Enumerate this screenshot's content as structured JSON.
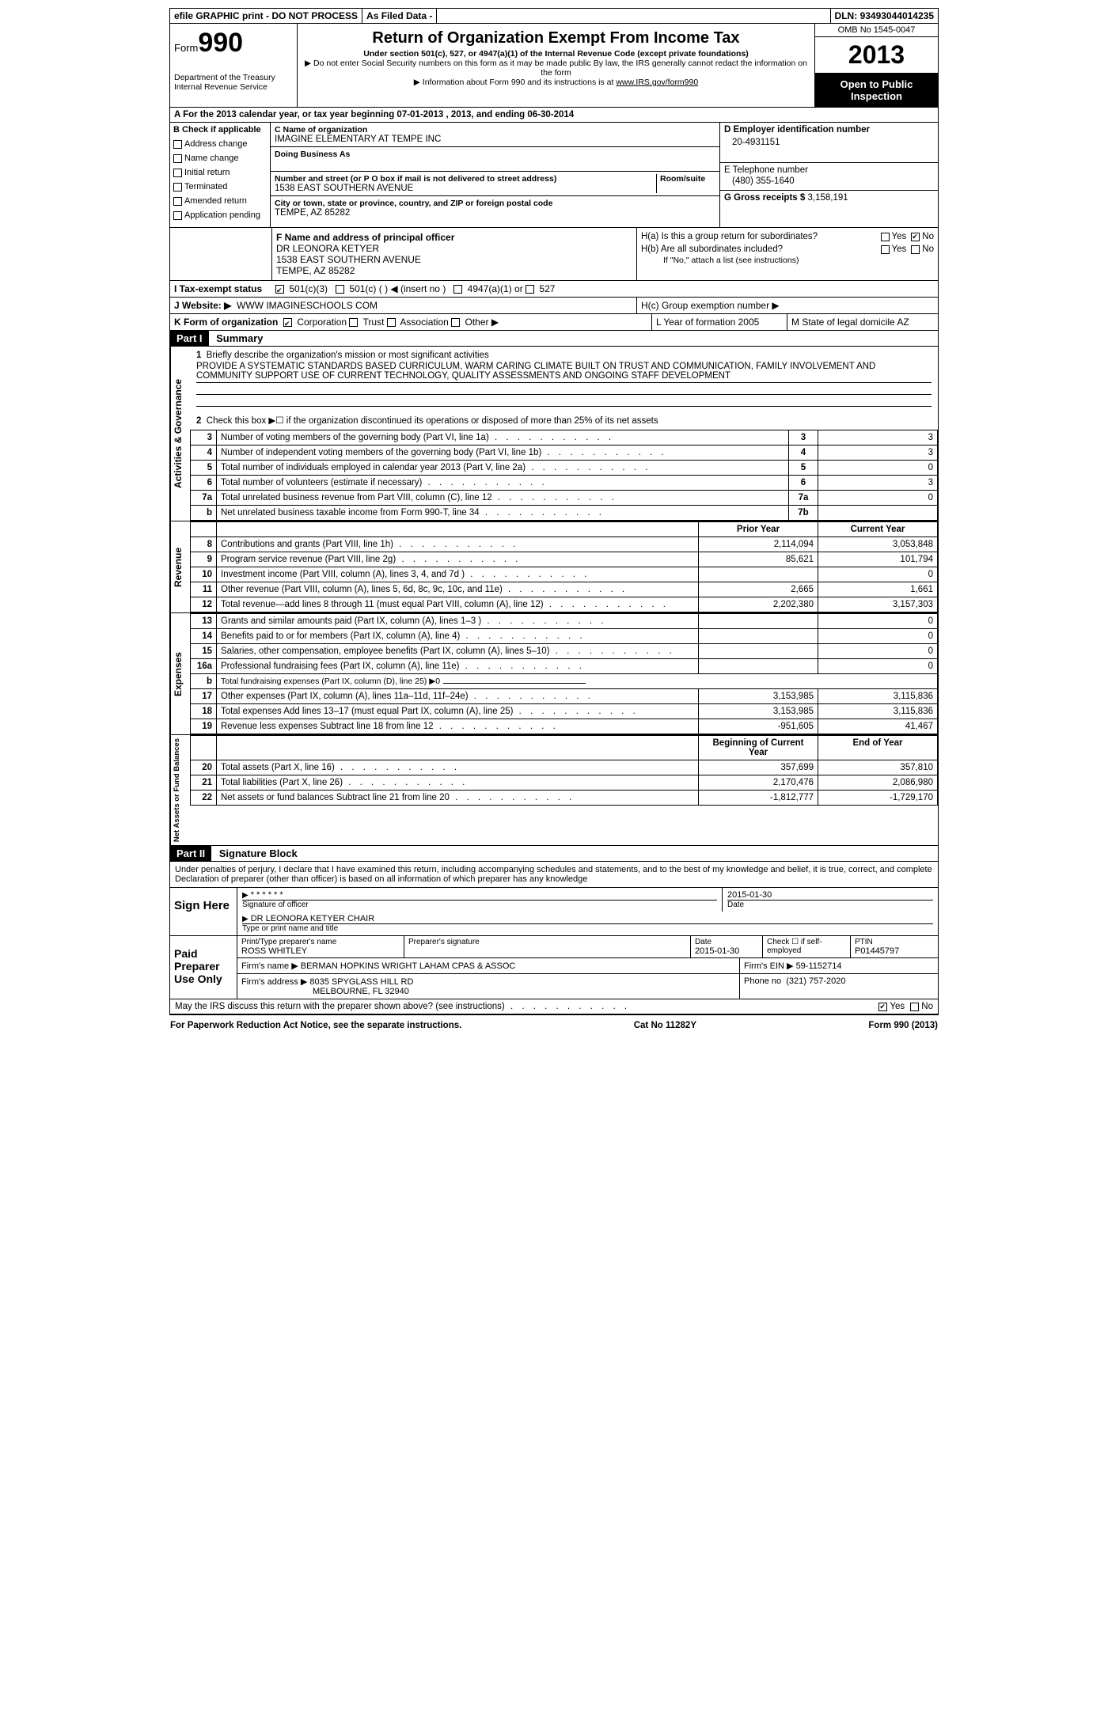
{
  "topbar": {
    "efile": "efile GRAPHIC print - DO NOT PROCESS",
    "asfiled": "As Filed Data -",
    "dln_label": "DLN:",
    "dln": "93493044014235"
  },
  "header": {
    "form_word": "Form",
    "form_num": "990",
    "dept1": "Department of the Treasury",
    "dept2": "Internal Revenue Service",
    "title": "Return of Organization Exempt From Income Tax",
    "sub1": "Under section 501(c), 527, or 4947(a)(1) of the Internal Revenue Code (except private foundations)",
    "sub2": "▶ Do not enter Social Security numbers on this form as it may be made public  By law, the IRS generally cannot redact the information on the form",
    "sub3": "▶ Information about Form 990 and its instructions is at",
    "sub3_link": "www.IRS.gov/form990",
    "omb": "OMB No  1545-0047",
    "year": "2013",
    "open1": "Open to Public",
    "open2": "Inspection"
  },
  "sectionA": "A  For the 2013 calendar year, or tax year beginning 07-01-2013     , 2013, and ending 06-30-2014",
  "colB": {
    "title": "B  Check if applicable",
    "items": [
      "Address change",
      "Name change",
      "Initial return",
      "Terminated",
      "Amended return",
      "Application pending"
    ]
  },
  "colC": {
    "c_label": "C Name of organization",
    "name": "IMAGINE ELEMENTARY AT TEMPE INC",
    "dba_label": "Doing Business As",
    "addr_label": "Number and street (or P O  box if mail is not delivered to street address)",
    "room_label": "Room/suite",
    "addr": "1538 EAST SOUTHERN AVENUE",
    "city_label": "City or town, state or province, country, and ZIP or foreign postal code",
    "city": "TEMPE, AZ  85282"
  },
  "colD": {
    "d_label": "D Employer identification number",
    "ein": "20-4931151",
    "e_label": "E Telephone number",
    "phone": "(480) 355-1640",
    "g_label": "G Gross receipts $",
    "gross": "3,158,191"
  },
  "officer": {
    "f_label": "F  Name and address of principal officer",
    "name": "DR LEONORA KETYER",
    "addr1": "1538 EAST SOUTHERN AVENUE",
    "addr2": "TEMPE, AZ  85282"
  },
  "groupH": {
    "ha": "H(a)  Is this a group return for subordinates?",
    "hb": "H(b)  Are all subordinates included?",
    "hb_note": "If \"No,\" attach a list  (see instructions)",
    "hc": "H(c)   Group exemption number ▶",
    "yes": "Yes",
    "no": "No"
  },
  "rowI": {
    "label": "I   Tax-exempt status",
    "opts": [
      "501(c)(3)",
      "501(c) (   ) ◀ (insert no )",
      "4947(a)(1) or",
      "527"
    ]
  },
  "rowJ": {
    "label": "J   Website: ▶",
    "value": "WWW IMAGINESCHOOLS COM"
  },
  "rowK": {
    "label": "K Form of organization",
    "opts": [
      "Corporation",
      "Trust",
      "Association",
      "Other ▶"
    ],
    "L": "L Year of formation  2005",
    "M": "M State of legal domicile  AZ"
  },
  "partI": {
    "header": "Part I",
    "title": "Summary",
    "q1": "Briefly describe the organization's mission or most significant activities",
    "q1_text": "PROVIDE A SYSTEMATIC STANDARDS BASED CURRICULUM, WARM CARING CLIMATE BUILT ON TRUST AND COMMUNICATION, FAMILY INVOLVEMENT AND COMMUNITY SUPPORT  USE OF CURRENT TECHNOLOGY, QUALITY ASSESSMENTS AND ONGOING STAFF DEVELOPMENT",
    "q2": "Check this box ▶☐ if the organization discontinued its operations or disposed of more than 25% of its net assets",
    "gov_rows": [
      {
        "n": "3",
        "label": "Number of voting members of the governing body (Part VI, line 1a)",
        "box": "3",
        "val": "3"
      },
      {
        "n": "4",
        "label": "Number of independent voting members of the governing body (Part VI, line 1b)",
        "box": "4",
        "val": "3"
      },
      {
        "n": "5",
        "label": "Total number of individuals employed in calendar year 2013 (Part V, line 2a)",
        "box": "5",
        "val": "0"
      },
      {
        "n": "6",
        "label": "Total number of volunteers (estimate if necessary)",
        "box": "6",
        "val": "3"
      },
      {
        "n": "7a",
        "label": "Total unrelated business revenue from Part VIII, column (C), line 12",
        "box": "7a",
        "val": "0"
      },
      {
        "n": "b",
        "label": "Net unrelated business taxable income from Form 990-T, line 34",
        "box": "7b",
        "val": ""
      }
    ],
    "col_prior": "Prior Year",
    "col_current": "Current Year",
    "revenue_rows": [
      {
        "n": "8",
        "label": "Contributions and grants (Part VIII, line 1h)",
        "py": "2,114,094",
        "cy": "3,053,848"
      },
      {
        "n": "9",
        "label": "Program service revenue (Part VIII, line 2g)",
        "py": "85,621",
        "cy": "101,794"
      },
      {
        "n": "10",
        "label": "Investment income (Part VIII, column (A), lines 3, 4, and 7d )",
        "py": "",
        "cy": "0"
      },
      {
        "n": "11",
        "label": "Other revenue (Part VIII, column (A), lines 5, 6d, 8c, 9c, 10c, and 11e)",
        "py": "2,665",
        "cy": "1,661"
      },
      {
        "n": "12",
        "label": "Total revenue—add lines 8 through 11 (must equal Part VIII, column (A), line 12)",
        "py": "2,202,380",
        "cy": "3,157,303"
      }
    ],
    "expense_rows": [
      {
        "n": "13",
        "label": "Grants and similar amounts paid (Part IX, column (A), lines 1–3 )",
        "py": "",
        "cy": "0"
      },
      {
        "n": "14",
        "label": "Benefits paid to or for members (Part IX, column (A), line 4)",
        "py": "",
        "cy": "0"
      },
      {
        "n": "15",
        "label": "Salaries, other compensation, employee benefits (Part IX, column (A), lines 5–10)",
        "py": "",
        "cy": "0"
      },
      {
        "n": "16a",
        "label": "Professional fundraising fees (Part IX, column (A), line 11e)",
        "py": "",
        "cy": "0"
      },
      {
        "n": "b",
        "label": "Total fundraising expenses (Part IX, column (D), line 25) ▶0",
        "py": "—",
        "cy": "—"
      },
      {
        "n": "17",
        "label": "Other expenses (Part IX, column (A), lines 11a–11d, 11f–24e)",
        "py": "3,153,985",
        "cy": "3,115,836"
      },
      {
        "n": "18",
        "label": "Total expenses  Add lines 13–17 (must equal Part IX, column (A), line 25)",
        "py": "3,153,985",
        "cy": "3,115,836"
      },
      {
        "n": "19",
        "label": "Revenue less expenses  Subtract line 18 from line 12",
        "py": "-951,605",
        "cy": "41,467"
      }
    ],
    "col_begin": "Beginning of Current Year",
    "col_end": "End of Year",
    "net_rows": [
      {
        "n": "20",
        "label": "Total assets (Part X, line 16)",
        "py": "357,699",
        "cy": "357,810"
      },
      {
        "n": "21",
        "label": "Total liabilities (Part X, line 26)",
        "py": "2,170,476",
        "cy": "2,086,980"
      },
      {
        "n": "22",
        "label": "Net assets or fund balances  Subtract line 21 from line 20",
        "py": "-1,812,777",
        "cy": "-1,729,170"
      }
    ]
  },
  "partII": {
    "header": "Part II",
    "title": "Signature Block",
    "declaration": "Under penalties of perjury, I declare that I have examined this return, including accompanying schedules and statements, and to the best of my knowledge and belief, it is true, correct, and complete  Declaration of preparer (other than officer) is based on all information of which preparer has any knowledge",
    "sign_here": "Sign Here",
    "sig_stars": "* * * * * *",
    "sig_of_officer": "Signature of officer",
    "sig_date": "2015-01-30",
    "date_label": "Date",
    "officer_name": "DR LEONORA KETYER  CHAIR",
    "officer_type": "Type or print name and title",
    "paid": "Paid Preparer Use Only",
    "prep_name_label": "Print/Type preparer's name",
    "prep_name": "ROSS WHITLEY",
    "prep_sig_label": "Preparer's signature",
    "prep_date": "2015-01-30",
    "check_self": "Check ☐ if self-employed",
    "ptin_label": "PTIN",
    "ptin": "P01445797",
    "firm_name_label": "Firm's name     ▶",
    "firm_name": "BERMAN HOPKINS WRIGHT LAHAM CPAS & ASSOC",
    "firm_ein_label": "Firm's EIN ▶",
    "firm_ein": "59-1152714",
    "firm_addr_label": "Firm's address ▶",
    "firm_addr1": "8035 SPYGLASS HILL RD",
    "firm_addr2": "MELBOURNE, FL  32940",
    "phone_label": "Phone no",
    "phone": "(321) 757-2020",
    "discuss": "May the IRS discuss this return with the preparer shown above? (see instructions)"
  },
  "footer": {
    "left": "For Paperwork Reduction Act Notice, see the separate instructions.",
    "mid": "Cat No  11282Y",
    "right": "Form 990 (2013)"
  },
  "vert_labels": {
    "gov": "Activities & Governance",
    "rev": "Revenue",
    "exp": "Expenses",
    "net": "Net Assets or Fund Balances"
  }
}
